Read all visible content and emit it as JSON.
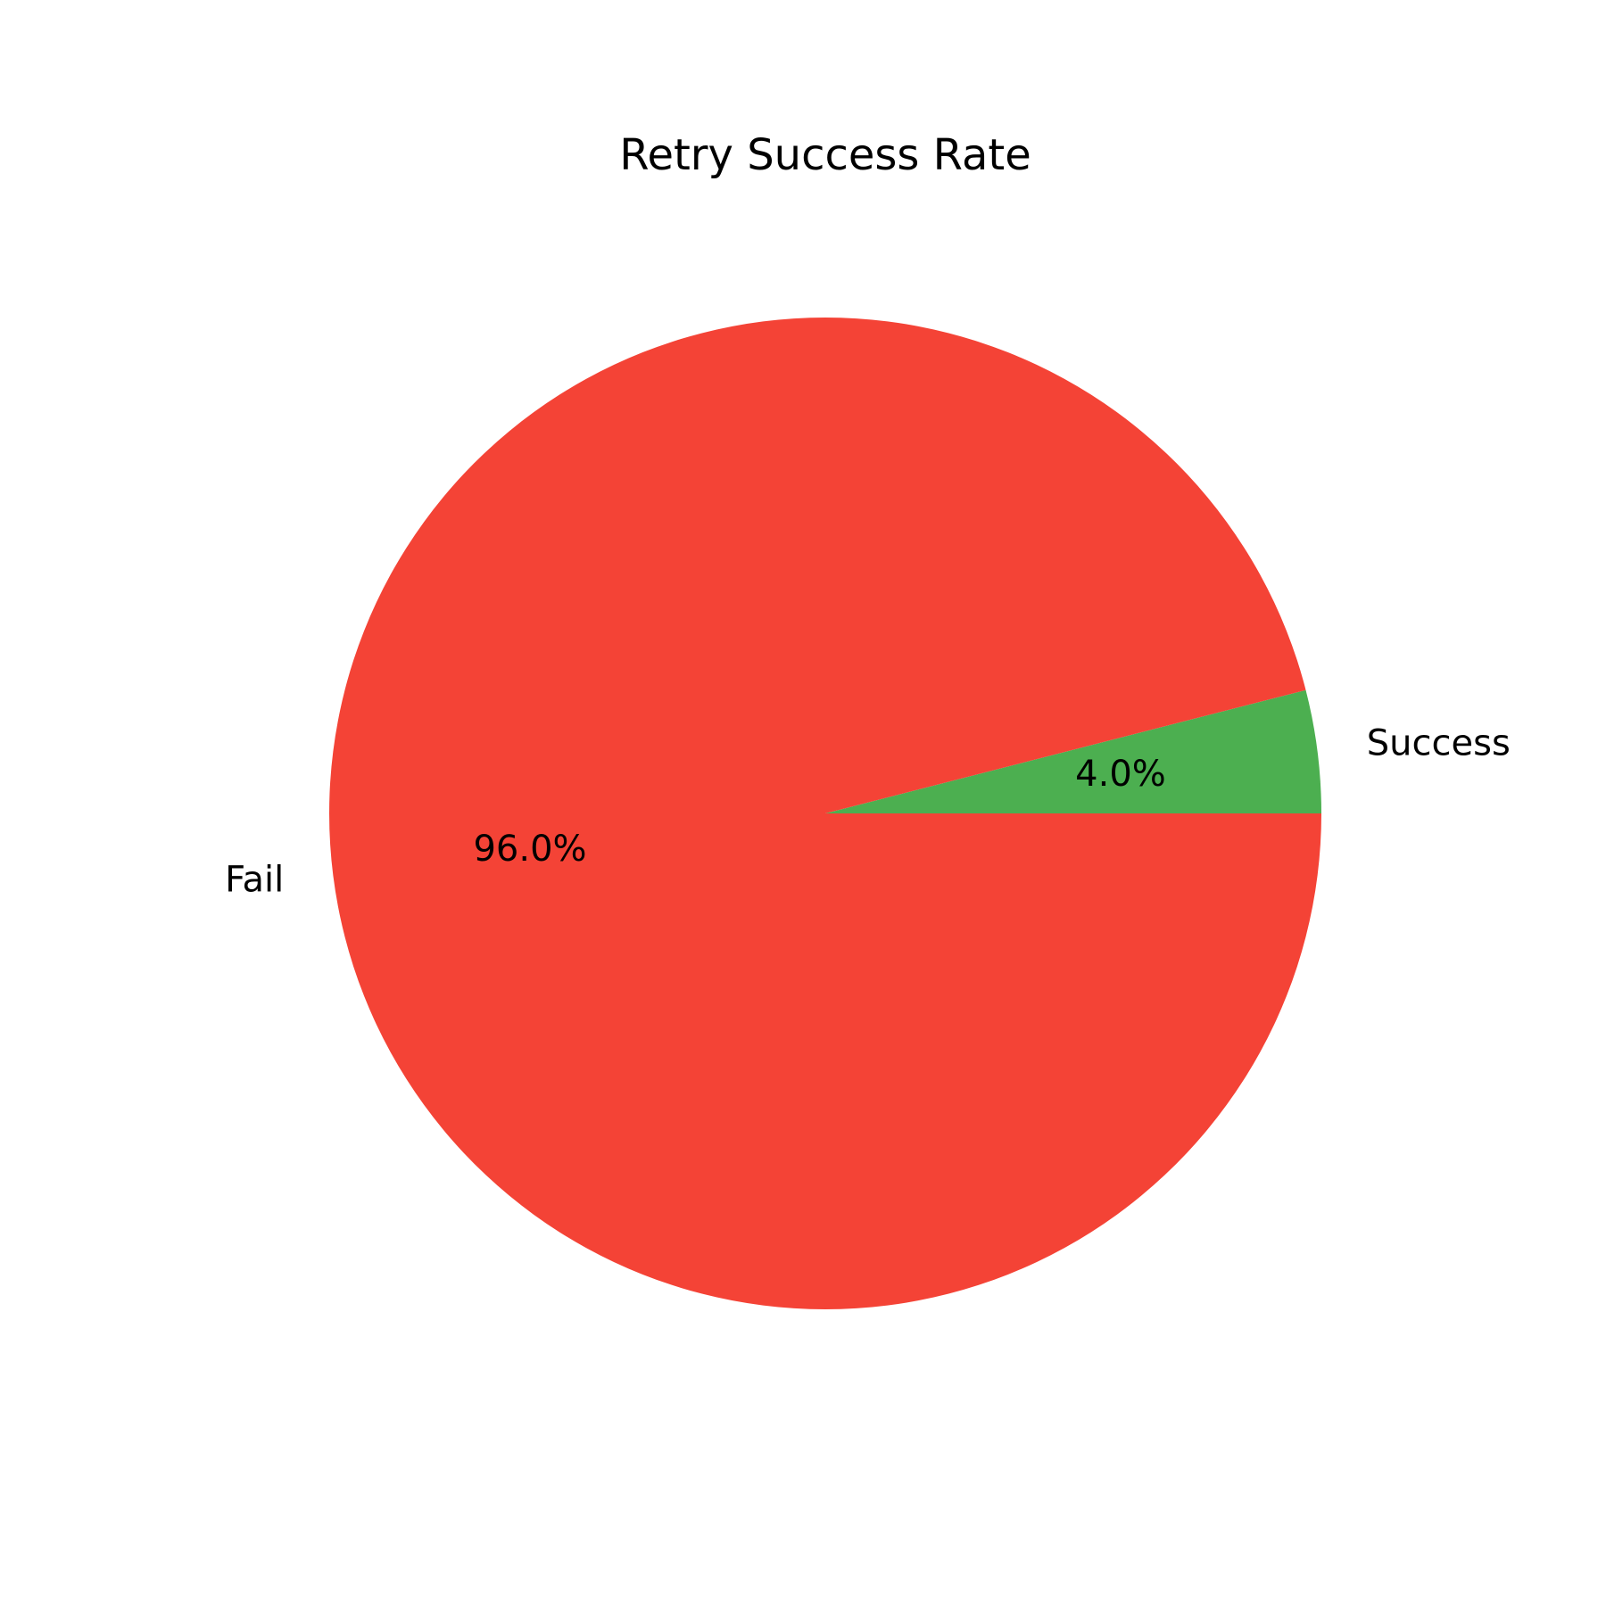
{
  "chart_data": {
    "type": "pie",
    "title": "Retry Success Rate",
    "labels": [
      "Success",
      "Fail"
    ],
    "values": [
      4.0,
      96.0
    ],
    "autopct_labels": [
      "4.0%",
      "96.0%"
    ],
    "colors": [
      "#4caf50",
      "#f44336"
    ],
    "start_angle_deg": 0,
    "direction": "counterclockwise",
    "legend": "none"
  }
}
